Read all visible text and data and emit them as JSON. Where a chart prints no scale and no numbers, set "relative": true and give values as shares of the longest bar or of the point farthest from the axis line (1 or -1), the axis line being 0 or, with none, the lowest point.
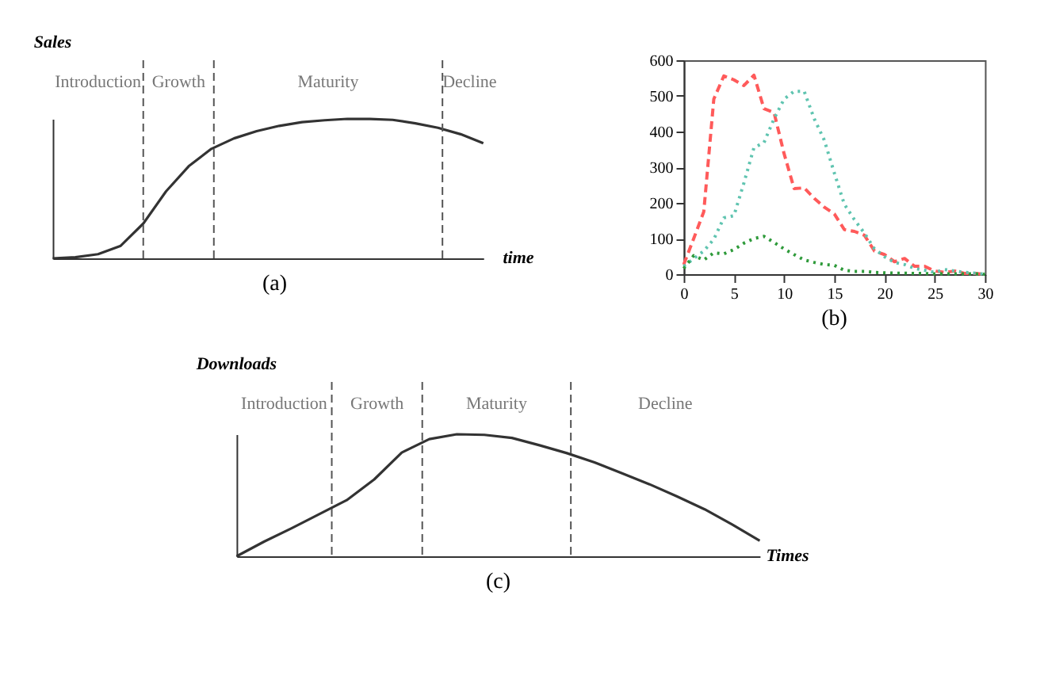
{
  "chart_data": [
    {
      "type": "line",
      "title": "(a)",
      "xlabel": "time",
      "ylabel": "Sales",
      "relative": true,
      "grid": false,
      "line_style": "solid",
      "categories": [
        null,
        null,
        null,
        null,
        null,
        null,
        null,
        null,
        null,
        null,
        null,
        null,
        null,
        null,
        null,
        null,
        null,
        null,
        null,
        null
      ],
      "annotations": [
        "Introduction",
        "Growth",
        "Maturity",
        "Decline"
      ],
      "series": [
        {
          "color": "#333333",
          "values": [
            0,
            0.008,
            0.03,
            0.09,
            0.25,
            0.48,
            0.66,
            0.785,
            0.86,
            0.912,
            0.95,
            0.977,
            0.99,
            1.0,
            0.999,
            0.993,
            0.968,
            0.936,
            0.89,
            0.825
          ]
        }
      ]
    },
    {
      "type": "line",
      "title": "(b)",
      "xlim": [
        0,
        30
      ],
      "xticks": [
        0,
        5,
        10,
        15,
        20,
        25,
        30
      ],
      "ylim": [
        0,
        600
      ],
      "yticks": [
        0,
        100,
        200,
        300,
        400,
        500,
        600
      ],
      "grid": false,
      "series": [
        {
          "color": "#ff5a5a",
          "line_style": "dashed",
          "x": [
            0,
            1,
            2,
            3,
            4,
            5,
            6,
            7,
            8,
            9,
            10,
            11,
            12,
            13,
            14,
            15,
            16,
            17,
            18,
            19,
            20,
            21,
            22,
            23,
            24,
            25,
            26,
            27,
            28,
            29,
            30
          ],
          "values": [
            27,
            100,
            175,
            491,
            556,
            545,
            529,
            558,
            464,
            453,
            338,
            240,
            242,
            213,
            188,
            169,
            125,
            120,
            109,
            65,
            55,
            35,
            44,
            22,
            22,
            9,
            5,
            9,
            2,
            2,
            0
          ]
        },
        {
          "color": "#5fc4b0",
          "line_style": "dotted",
          "x": [
            0,
            1,
            2,
            3,
            4,
            5,
            6,
            7,
            8,
            9,
            10,
            11,
            12,
            13,
            14,
            15,
            16,
            17,
            18,
            19,
            20,
            21,
            22,
            23,
            24,
            25,
            26,
            27,
            28,
            29,
            30
          ],
          "values": [
            22,
            44,
            65,
            98,
            158,
            164,
            256,
            355,
            369,
            436,
            491,
            513,
            513,
            436,
            376,
            284,
            196,
            153,
            115,
            71,
            49,
            33,
            27,
            16,
            11,
            5,
            13,
            9,
            5,
            3,
            0
          ]
        },
        {
          "color": "#2e9a3a",
          "line_style": "dotted",
          "x": [
            0,
            1,
            2,
            3,
            4,
            5,
            6,
            7,
            8,
            9,
            10,
            11,
            12,
            13,
            14,
            15,
            16,
            17,
            18,
            19,
            20,
            21,
            22,
            23,
            24,
            25,
            26,
            27,
            28,
            29,
            30
          ],
          "values": [
            16,
            52,
            40,
            60,
            57,
            69,
            87,
            100,
            106,
            89,
            71,
            55,
            40,
            33,
            27,
            25,
            11,
            8,
            8,
            5,
            4,
            3,
            3,
            2,
            2,
            1,
            1,
            1,
            1,
            1,
            0
          ]
        }
      ]
    },
    {
      "type": "line",
      "title": "(c)",
      "xlabel": "Times",
      "ylabel": "Downloads",
      "relative": true,
      "grid": false,
      "line_style": "solid",
      "categories": [
        null,
        null,
        null,
        null,
        null,
        null,
        null,
        null,
        null,
        null,
        null,
        null,
        null,
        null,
        null,
        null,
        null,
        null,
        null,
        null
      ],
      "annotations": [
        "Introduction",
        "Growth",
        "Maturity",
        "Decline"
      ],
      "series": [
        {
          "color": "#333333",
          "values": [
            0,
            0.12,
            0.23,
            0.345,
            0.46,
            0.63,
            0.85,
            0.96,
            1.0,
            0.995,
            0.97,
            0.91,
            0.845,
            0.77,
            0.68,
            0.59,
            0.49,
            0.385,
            0.26,
            0.127
          ]
        }
      ]
    }
  ]
}
